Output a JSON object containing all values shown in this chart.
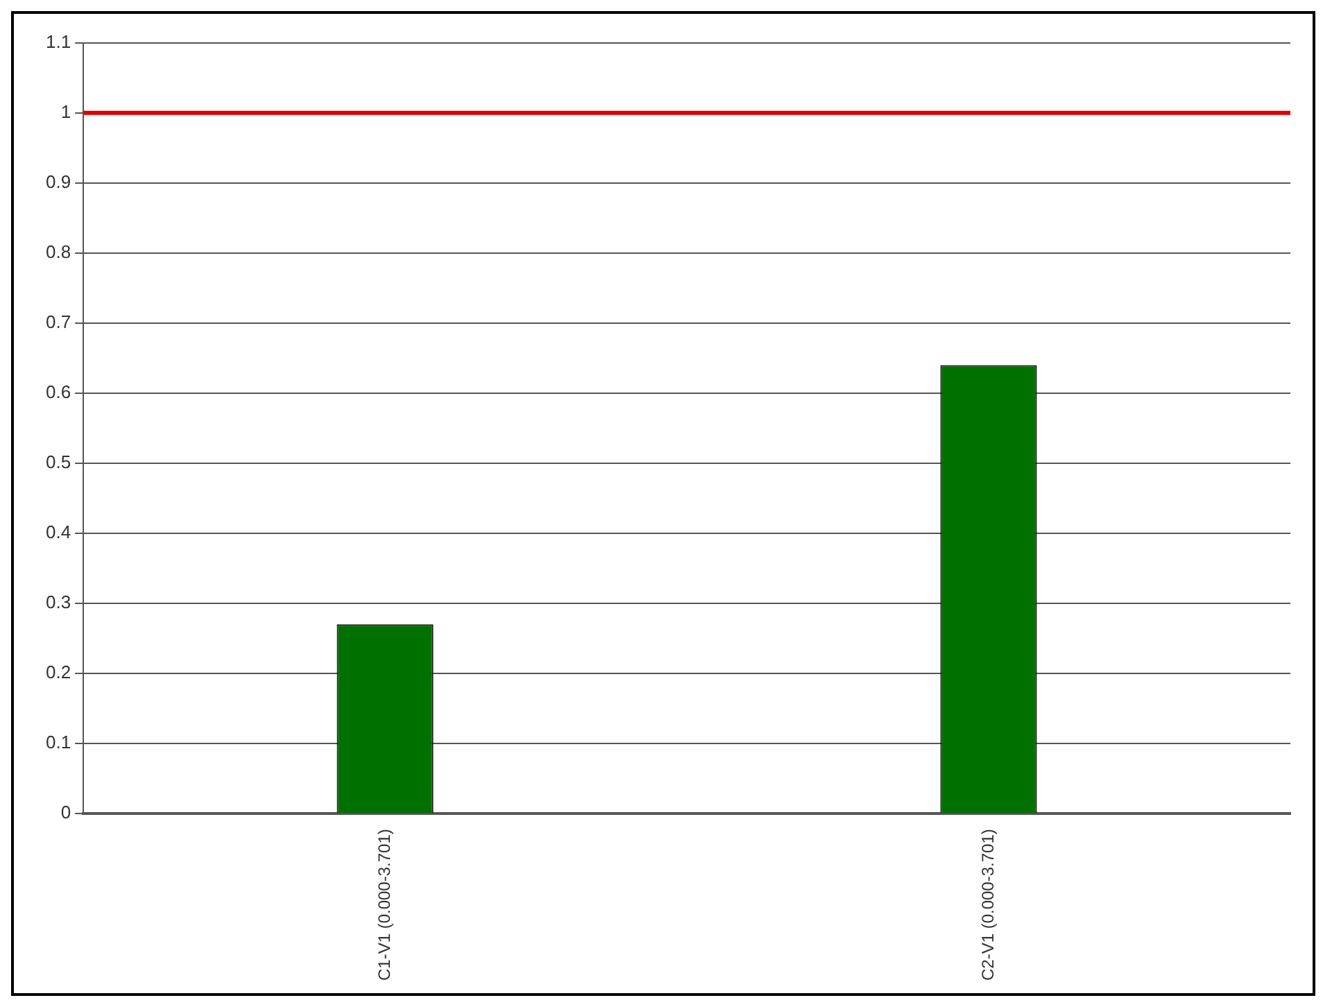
{
  "chart_data": {
    "type": "bar",
    "categories": [
      "C1-V1 (0.000-3.701)",
      "C2-V1 (0.000-3.701)"
    ],
    "values": [
      0.27,
      0.64
    ],
    "color": "#007000",
    "ylim": [
      0,
      1.1
    ],
    "yticks": [
      0,
      0.1,
      0.2,
      0.3,
      0.4,
      0.5,
      0.6,
      0.7,
      0.8,
      0.9,
      1,
      1.1
    ],
    "grid": "y",
    "ref_lines": [
      {
        "axis": "y",
        "value": 1,
        "color": "#e00000"
      }
    ]
  }
}
